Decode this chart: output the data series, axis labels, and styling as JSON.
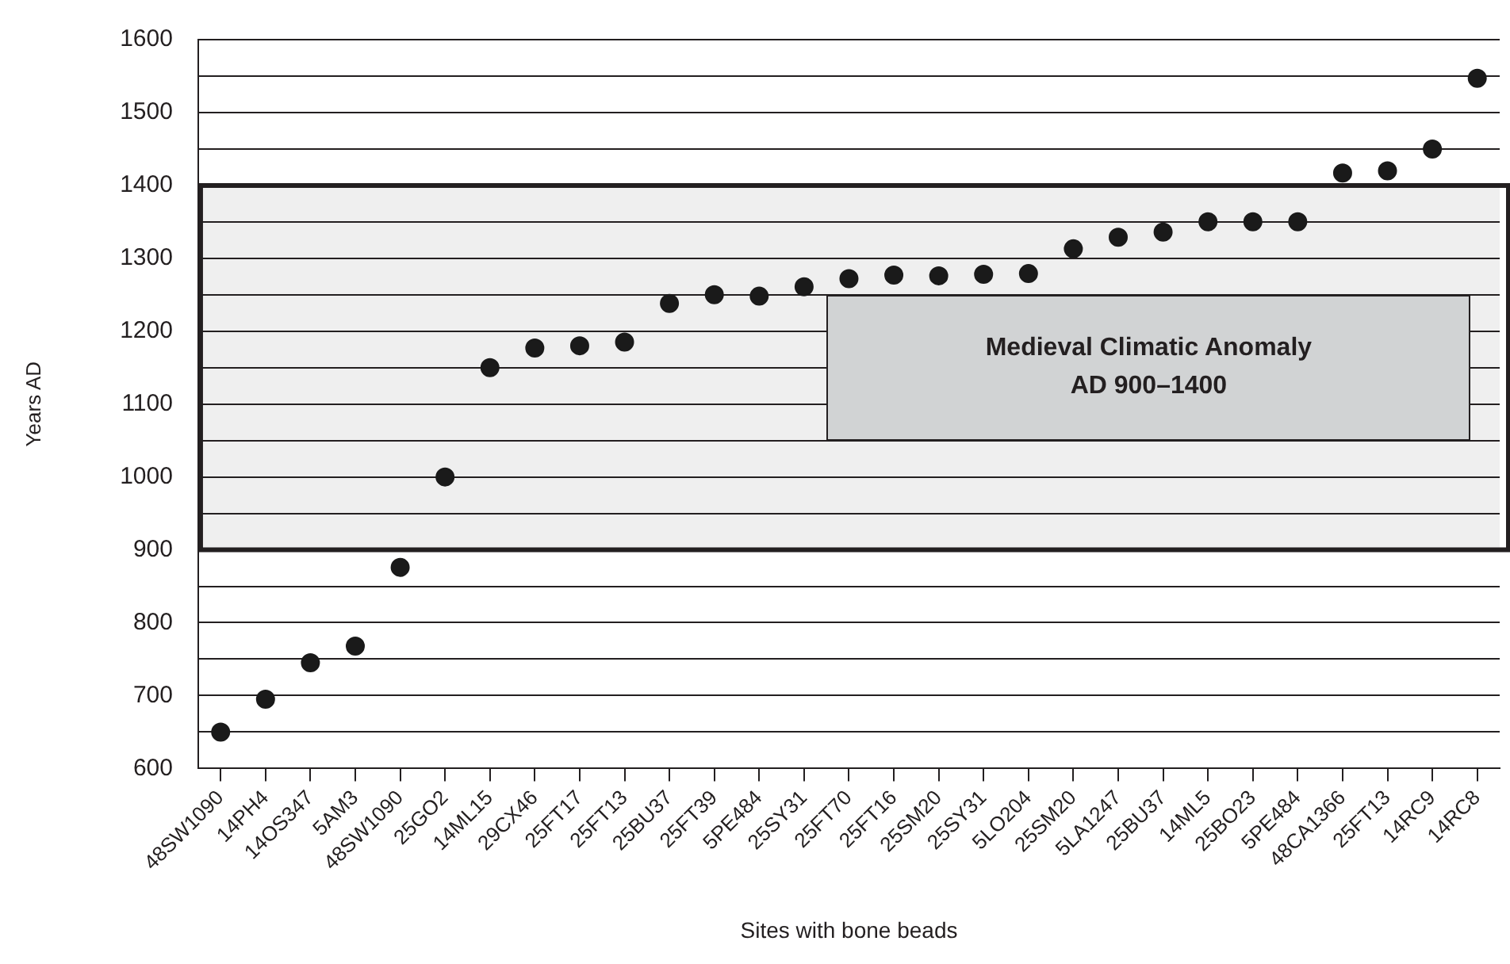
{
  "chart_data": {
    "type": "scatter",
    "xlabel": "Sites with bone beads",
    "ylabel": "Years AD",
    "categories": [
      "48SW1090",
      "14PH4",
      "14OS347",
      "5AM3",
      "48SW1090",
      "25GO2",
      "14ML15",
      "29CX46",
      "25FT17",
      "25FT13",
      "25BU37",
      "25FT39",
      "5PE484",
      "25SY31",
      "25FT70",
      "25FT16",
      "25SM20",
      "25SY31",
      "5LO204",
      "25SM20",
      "5LA1247",
      "25BU37",
      "14ML5",
      "25BO23",
      "5PE484",
      "48CA1366",
      "25FT13",
      "14RC9",
      "14RC8"
    ],
    "series": [
      {
        "color": "#1a1a1a",
        "values": [
          650,
          695,
          745,
          768,
          876,
          1000,
          1150,
          1177,
          1180,
          1185,
          1238,
          1250,
          1248,
          1261,
          1272,
          1277,
          1276,
          1278,
          1279,
          1313,
          1329,
          1336,
          1350,
          1350,
          1350,
          1417,
          1420,
          1450,
          1547
        ]
      }
    ],
    "ylim": [
      600,
      1600
    ],
    "yticks": [
      600,
      {
        "value": 650,
        "label": null
      },
      700,
      {
        "value": 750,
        "label": null
      },
      800,
      {
        "value": 850,
        "label": null
      },
      900,
      {
        "value": 950,
        "label": null
      },
      1000,
      {
        "value": 1050,
        "label": null
      },
      1100,
      {
        "value": 1150,
        "label": null
      },
      1200,
      {
        "value": 1250,
        "label": null
      },
      1300,
      {
        "value": 1350,
        "label": null
      },
      1400,
      {
        "value": 1450,
        "label": null
      },
      1500,
      {
        "value": 1550,
        "label": null
      },
      1600
    ],
    "bands": [
      {
        "axis": "y",
        "from": 900,
        "to": 1400,
        "color": "#efefef",
        "label": "Medieval Climatic Anomaly\nAD 900–1400"
      }
    ],
    "grid": "y",
    "marker": "circle",
    "legend": false
  }
}
